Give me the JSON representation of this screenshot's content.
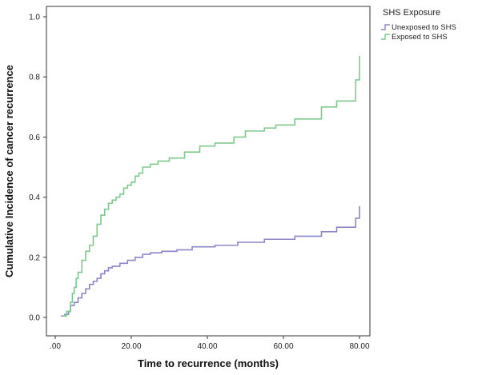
{
  "chart_data": {
    "type": "line",
    "step": true,
    "xlabel": "Time to recurrence (months)",
    "ylabel": "Cumulative Incidence of cancer recurrence",
    "xlim": [
      0,
      80
    ],
    "ylim": [
      0,
      1.0
    ],
    "xticks": [
      ".00",
      "20.00",
      "40.00",
      "60.00",
      "80.00"
    ],
    "xtick_values": [
      0,
      20,
      40,
      60,
      80
    ],
    "yticks": [
      "0.0",
      "0.2",
      "0.4",
      "0.6",
      "0.8",
      "1.0"
    ],
    "ytick_values": [
      0,
      0.2,
      0.4,
      0.6,
      0.8,
      1.0
    ],
    "grid": false,
    "legend": {
      "title": "SHS Exposure",
      "position": "right"
    },
    "series": [
      {
        "name": "Unexposed to SHS",
        "color": "#8b86c8",
        "x": [
          1.5,
          2.5,
          3.5,
          4,
          5,
          6,
          7,
          8,
          9,
          10,
          11,
          12,
          13,
          14,
          15,
          17,
          19,
          21,
          23,
          25,
          28,
          32,
          36,
          42,
          48,
          55,
          63,
          70,
          74,
          78,
          79,
          80
        ],
        "y": [
          0.005,
          0.01,
          0.02,
          0.04,
          0.05,
          0.065,
          0.08,
          0.095,
          0.11,
          0.12,
          0.13,
          0.145,
          0.155,
          0.165,
          0.17,
          0.18,
          0.19,
          0.2,
          0.21,
          0.215,
          0.22,
          0.225,
          0.235,
          0.24,
          0.25,
          0.26,
          0.27,
          0.285,
          0.3,
          0.3,
          0.33,
          0.37
        ]
      },
      {
        "name": "Exposed to SHS",
        "color": "#7fc88e",
        "x": [
          2,
          3,
          4,
          4.5,
          5,
          5.5,
          6,
          7,
          8,
          9,
          10,
          11,
          12,
          13,
          14,
          15,
          16,
          17,
          18,
          19,
          20,
          21,
          22,
          23,
          24,
          25,
          27,
          30,
          34,
          38,
          42,
          47,
          50,
          55,
          58,
          63,
          70,
          74,
          79,
          80
        ],
        "y": [
          0.005,
          0.02,
          0.05,
          0.08,
          0.1,
          0.13,
          0.15,
          0.19,
          0.22,
          0.24,
          0.27,
          0.31,
          0.34,
          0.36,
          0.38,
          0.39,
          0.4,
          0.41,
          0.43,
          0.44,
          0.45,
          0.47,
          0.48,
          0.5,
          0.5,
          0.51,
          0.52,
          0.53,
          0.55,
          0.57,
          0.58,
          0.6,
          0.62,
          0.63,
          0.64,
          0.66,
          0.7,
          0.72,
          0.79,
          0.87
        ]
      }
    ]
  }
}
